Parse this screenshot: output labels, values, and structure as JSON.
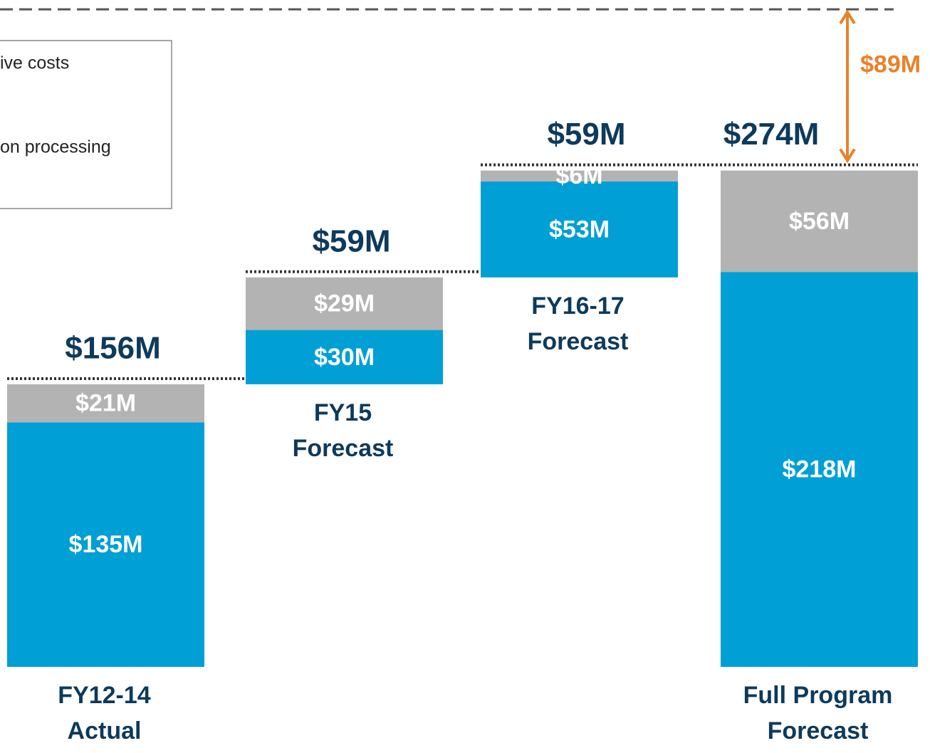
{
  "chart_data": {
    "type": "waterfall",
    "categories": [
      [
        "FY12-14",
        "Actual"
      ],
      [
        "FY15",
        "Forecast"
      ],
      [
        "FY16-17",
        "Forecast"
      ],
      [
        "Full Program",
        "Forecast"
      ]
    ],
    "series": [
      {
        "name": "on processing",
        "color": "#009fd6",
        "values": [
          135,
          30,
          53,
          218
        ],
        "value_labels": [
          "$135M",
          "$30M",
          "$53M",
          "$218M"
        ]
      },
      {
        "name": "ive costs",
        "color": "#b3b3b3",
        "values": [
          21,
          29,
          6,
          56
        ],
        "value_labels": [
          "$21M",
          "$29M",
          "$6M",
          "$56M"
        ]
      }
    ],
    "totals": [
      156,
      59,
      59,
      274
    ],
    "total_labels": [
      "$156M",
      "$59M",
      "$59M",
      "$274M"
    ],
    "annotation": {
      "value": 89,
      "label": "$89M",
      "color": "#e8822a"
    },
    "ylim": [
      0,
      365
    ]
  }
}
